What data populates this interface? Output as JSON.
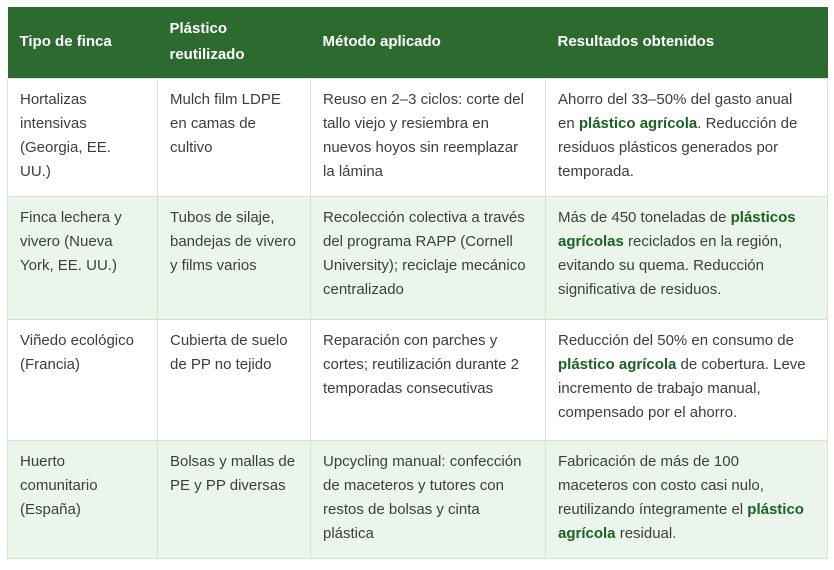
{
  "colors": {
    "header_bg": "#2d6a2f",
    "header_text": "#ffffff",
    "row_bg": "#ffffff",
    "row_alt_bg": "#ecf5ec",
    "border": "#d9e2d9",
    "body_text": "#3d3d3d",
    "highlight_text": "#1b6123"
  },
  "table": {
    "headers": [
      "Tipo de finca",
      "Plástico reutilizado",
      "Método aplicado",
      "Resultados obtenidos"
    ],
    "rows": [
      {
        "cells": [
          "Hortalizas intensivas (Georgia, EE. UU.)",
          "Mulch film LDPE en camas de cultivo",
          "Reuso en 2–3 ciclos: corte del tallo viejo y resiembra en nuevos hoyos sin reemplazar la lámina",
          [
            {
              "text": "Ahorro del 33–50% del gasto anual en ",
              "bold": false
            },
            {
              "text": "plástico agrícola",
              "bold": true
            },
            {
              "text": ". Reducción de residuos plásticos generados por temporada.",
              "bold": false
            }
          ]
        ]
      },
      {
        "cells": [
          "Finca lechera y vivero (Nueva York, EE. UU.)",
          "Tubos de silaje, bandejas de vivero y films varios",
          "Recolección colectiva a través del programa RAPP (Cornell University); reciclaje mecánico centralizado",
          [
            {
              "text": "Más de 450 toneladas de ",
              "bold": false
            },
            {
              "text": "plásticos agrícolas",
              "bold": true
            },
            {
              "text": " reciclados en la región, evitando su quema. Reducción significativa de residuos.",
              "bold": false
            }
          ]
        ]
      },
      {
        "cells": [
          "Viñedo ecológico (Francia)",
          "Cubierta de suelo de PP no tejido",
          "Reparación con parches y cortes; reutilización durante 2 temporadas consecutivas",
          [
            {
              "text": "Reducción del 50% en consumo de ",
              "bold": false
            },
            {
              "text": "plástico agrícola",
              "bold": true
            },
            {
              "text": " de cobertura. Leve incremento de trabajo manual, compensado por el ahorro.",
              "bold": false
            }
          ]
        ]
      },
      {
        "cells": [
          "Huerto comunitario (España)",
          "Bolsas y mallas de PE y PP diversas",
          "Upcycling manual: confección de maceteros y tutores con restos de bolsas y cinta plástica",
          [
            {
              "text": "Fabricación de más de 100 maceteros con costo casi nulo, reutilizando íntegramente el ",
              "bold": false
            },
            {
              "text": "plástico agrícola",
              "bold": true
            },
            {
              "text": " residual.",
              "bold": false
            }
          ]
        ]
      }
    ]
  }
}
